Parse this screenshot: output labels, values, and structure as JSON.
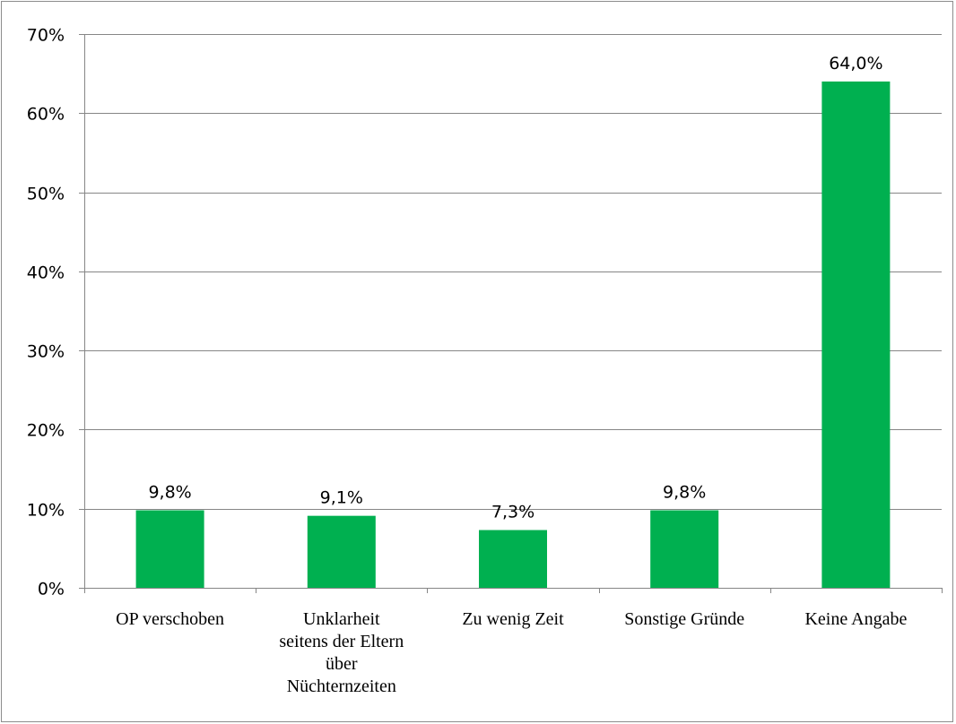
{
  "chart_data": {
    "type": "bar",
    "categories": [
      "OP verschoben",
      "Unklarheit seitens der Eltern über Nüchternzeiten",
      "Zu wenig Zeit",
      "Sonstige Gründe",
      "Keine Angabe"
    ],
    "category_lines": [
      [
        "OP verschoben"
      ],
      [
        "Unklarheit",
        "seitens der Eltern",
        "über",
        "Nüchternzeiten"
      ],
      [
        "Zu wenig Zeit"
      ],
      [
        "Sonstige Gründe"
      ],
      [
        "Keine Angabe"
      ]
    ],
    "values": [
      9.8,
      9.1,
      7.3,
      9.8,
      64.0
    ],
    "data_labels": [
      "9,8%",
      "9,1%",
      "7,3%",
      "9,8%",
      "64,0%"
    ],
    "yticks": [
      0,
      10,
      20,
      30,
      40,
      50,
      60,
      70
    ],
    "ytick_labels": [
      "0%",
      "10%",
      "20%",
      "30%",
      "40%",
      "50%",
      "60%",
      "70%"
    ],
    "ylim": [
      0,
      70
    ],
    "grid": true,
    "legend": "none",
    "title": "",
    "xlabel": "",
    "ylabel": "",
    "colors": {
      "bar": "#00b050",
      "grid": "#868686",
      "axis": "#868686",
      "frame": "#8c8c8c"
    }
  }
}
